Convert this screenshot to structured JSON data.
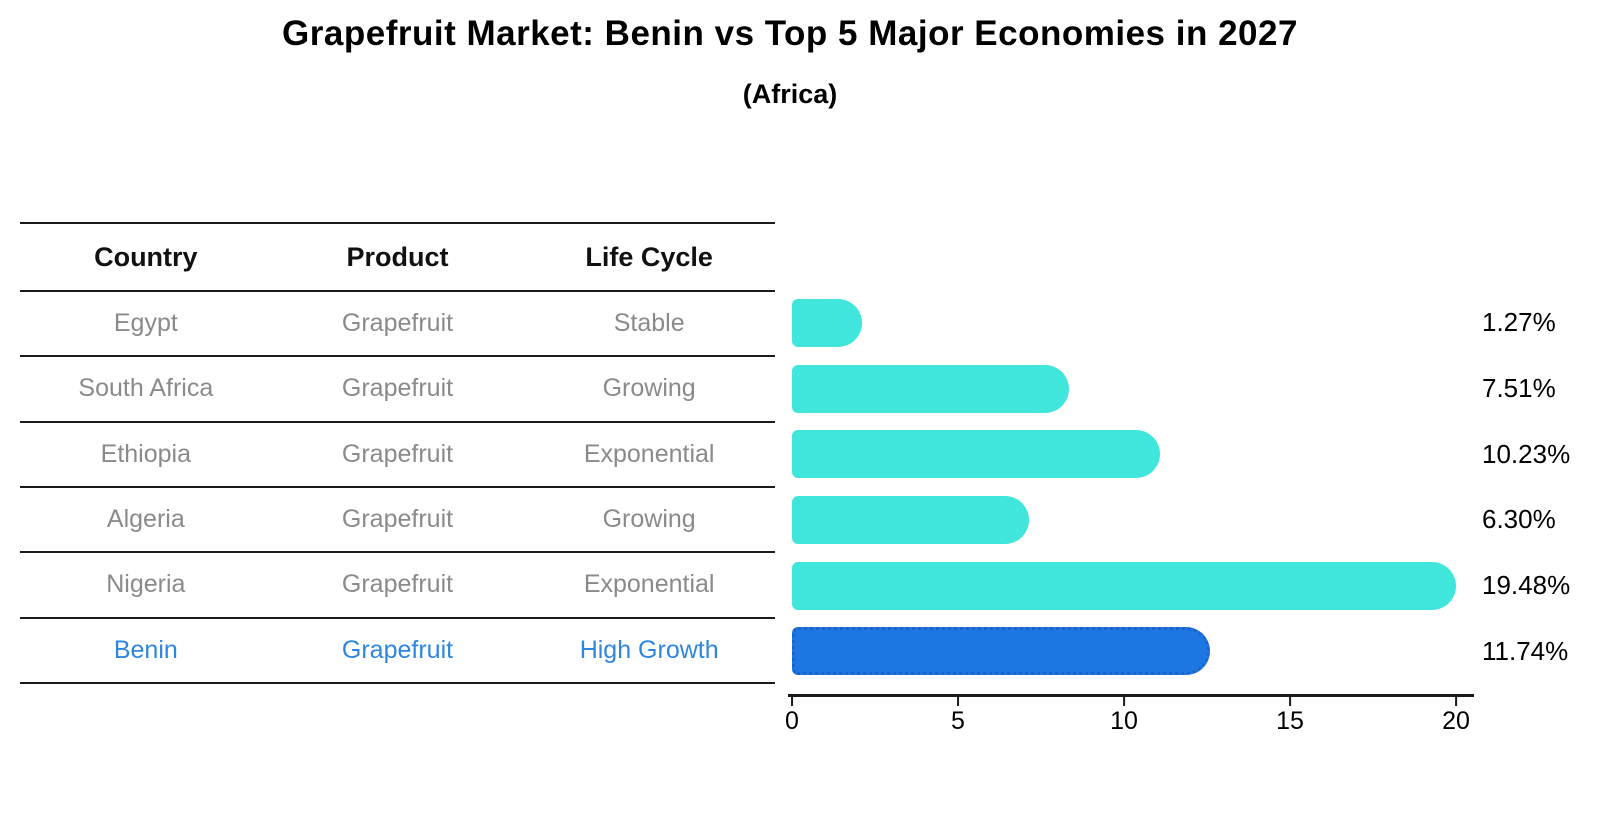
{
  "title": "Grapefruit Market: Benin vs Top 5 Major Economies in 2027",
  "subtitle": "(Africa)",
  "table": {
    "headers": [
      "Country",
      "Product",
      "Life Cycle"
    ],
    "rows": [
      {
        "country": "Egypt",
        "product": "Grapefruit",
        "life_cycle": "Stable"
      },
      {
        "country": "South Africa",
        "product": "Grapefruit",
        "life_cycle": "Growing"
      },
      {
        "country": "Ethiopia",
        "product": "Grapefruit",
        "life_cycle": "Exponential"
      },
      {
        "country": "Algeria",
        "product": "Grapefruit",
        "life_cycle": "Growing"
      },
      {
        "country": "Nigeria",
        "product": "Grapefruit",
        "life_cycle": "Exponential"
      },
      {
        "country": "Benin",
        "product": "Grapefruit",
        "life_cycle": "High Growth"
      }
    ]
  },
  "chart_data": {
    "type": "bar",
    "orientation": "horizontal",
    "title": "Grapefruit Market: Benin vs Top 5 Major Economies in 2027",
    "subtitle": "(Africa)",
    "categories": [
      "Egypt",
      "South Africa",
      "Ethiopia",
      "Algeria",
      "Nigeria",
      "Benin"
    ],
    "values": [
      1.27,
      7.51,
      10.23,
      6.3,
      19.48,
      11.74
    ],
    "value_labels": [
      "1.27%",
      "7.51%",
      "10.23%",
      "6.30%",
      "19.48%",
      "11.74%"
    ],
    "highlight_index": 5,
    "xlim": [
      0,
      20
    ],
    "xticks": [
      "0",
      "5",
      "10",
      "15",
      "20"
    ],
    "grid": false,
    "legend": "none",
    "colors": {
      "bar": "#40E5DC",
      "highlight_bar": "#1D76E2",
      "highlight_text": "#2E86DE",
      "row_text": "#8A8A8A",
      "header_text": "#111111",
      "axis": "#1A1A1A"
    }
  }
}
